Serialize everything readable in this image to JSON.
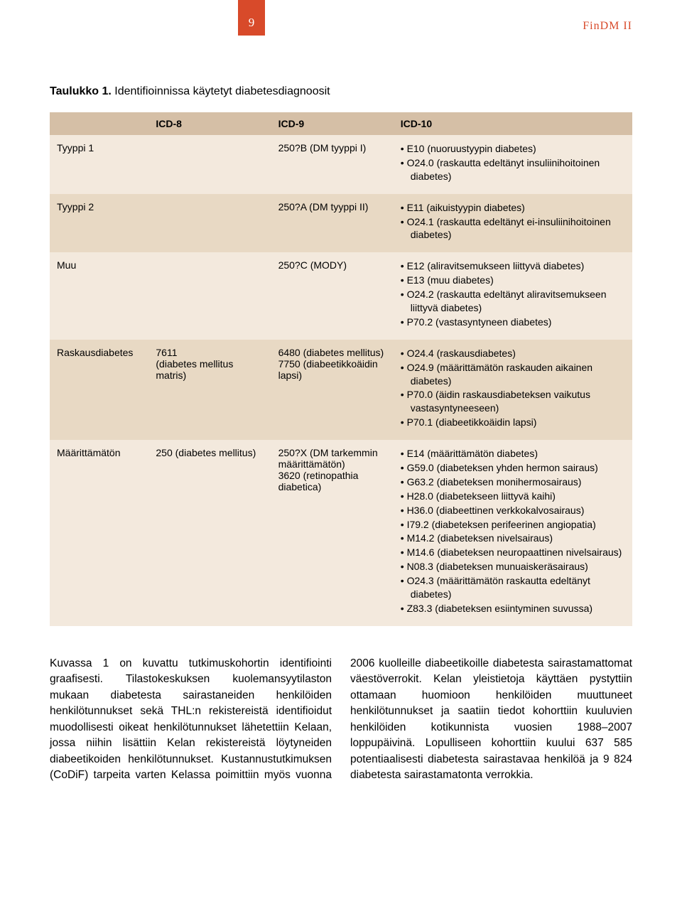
{
  "header": {
    "page_number": "9",
    "doc_label": "FinDM II"
  },
  "table": {
    "caption_bold": "Taulukko 1.",
    "caption_rest": " Identifioinnissa käytetyt diabetesdiagnoosit",
    "columns": [
      "",
      "ICD-8",
      "ICD-9",
      "ICD-10"
    ],
    "col_widths": [
      "17%",
      "21%",
      "21%",
      "41%"
    ],
    "header_bg": "#d5bfa6",
    "row_bg_odd": "#f3e9dd",
    "row_bg_even": "#e8d9c4",
    "rows": [
      {
        "type": "Tyyppi 1",
        "icd8": "",
        "icd9": "250?B (DM tyyppi I)",
        "icd10": [
          "E10 (nuoruustyypin diabetes)",
          "O24.0 (raskautta edeltänyt insuliinihoitoinen diabetes)"
        ]
      },
      {
        "type": "Tyyppi 2",
        "icd8": "",
        "icd9": "250?A (DM tyyppi II)",
        "icd10": [
          "E11 (aikuistyypin diabetes)",
          "O24.1 (raskautta edeltänyt ei-insuliinihoitoinen diabetes)"
        ]
      },
      {
        "type": "Muu",
        "icd8": "",
        "icd9": "250?C (MODY)",
        "icd10": [
          "E12 (aliravitsemukseen liittyvä diabetes)",
          "E13 (muu diabetes)",
          "O24.2 (raskautta edeltänyt aliravitsemukseen liittyvä diabetes)",
          "P70.2 (vastasyntyneen diabetes)"
        ]
      },
      {
        "type": "Raskausdiabetes",
        "icd8": "7611\n(diabetes mellitus matris)",
        "icd9": "6480 (diabetes mellitus)\n7750 (diabeetikkoäidin lapsi)",
        "icd10": [
          "O24.4 (raskausdiabetes)",
          "O24.9 (määrittämätön raskauden aikainen diabetes)",
          "P70.0 (äidin raskausdiabeteksen vaikutus vastasyntyneeseen)",
          "P70.1 (diabeetikkoäidin lapsi)"
        ]
      },
      {
        "type": "Määrittämätön",
        "icd8": "250 (diabetes mellitus)",
        "icd9": "250?X (DM tarkemmin määrittämätön)\n3620 (retinopathia diabetica)",
        "icd10": [
          "E14 (määrittämätön diabetes)",
          "G59.0 (diabeteksen yhden hermon sairaus)",
          "G63.2 (diabeteksen monihermosairaus)",
          "H28.0 (diabetekseen liittyvä kaihi)",
          "H36.0 (diabeettinen verkkokalvosairaus)",
          "I79.2 (diabeteksen perifeerinen angiopatia)",
          "M14.2 (diabeteksen nivelsairaus)",
          "M14.6 (diabeteksen neuropaattinen nivelsairaus)",
          "N08.3 (diabeteksen munuaiskeräsairaus)",
          "O24.3 (määrittämätön raskautta edeltänyt diabetes)",
          "Z83.3 (diabeteksen esiintyminen suvussa)"
        ]
      }
    ]
  },
  "body_text": "Kuvassa 1 on kuvattu tutkimuskohortin identifiointi graafisesti. Tilastokeskuksen kuolemansyytilaston mukaan diabetesta sairastaneiden henkilöiden henkilötunnukset sekä THL:n rekistereistä identifioidut muodollisesti oikeat henkilötunnukset lähetettiin Kelaan, jossa niihin lisättiin Kelan rekistereistä löytyneiden diabeetikoiden henkilötunnukset. Kustannustutkimuksen (CoDiF) tarpeita varten Kelassa poimittiin myös vuonna 2006 kuolleille diabeetikoille diabetesta sairastamattomat väestöverrokit. Kelan yleistietoja käyttäen pystyttiin ottamaan huomioon henkilöiden muuttuneet henkilötunnukset ja saatiin tiedot kohorttiin kuuluvien henkilöiden kotikunnista vuosien 1988–2007 loppupäivinä. Lopulliseen kohorttiin kuului 637 585 potentiaalisesti diabetesta sairastavaa henkilöä ja 9 824 diabetesta sairastamatonta verrokkia.",
  "colors": {
    "accent": "#d84a2a",
    "background": "#ffffff",
    "text": "#000000"
  },
  "typography": {
    "body_font": "Arial, sans-serif",
    "body_size_pt": 11,
    "table_size_pt": 10
  }
}
